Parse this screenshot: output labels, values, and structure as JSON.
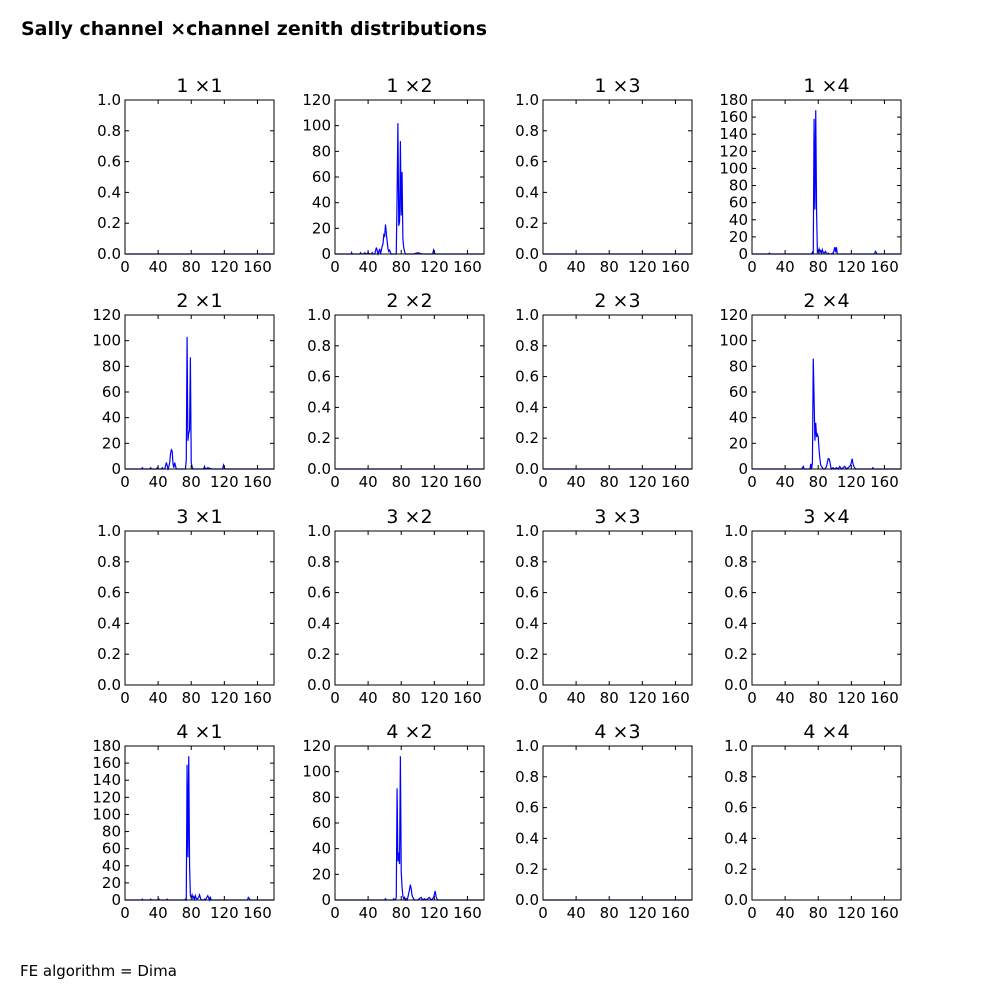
{
  "title": "Sally channel ×channel zenith distributions",
  "footer": "FE algorithm = Dima",
  "colors": {
    "line": "#0000ff",
    "axes": "#000000"
  },
  "chart_data": [
    {
      "type": "line",
      "title": "1 ×1",
      "xlim": [
        0,
        180
      ],
      "ylim": [
        0,
        1.0
      ],
      "xticks": [
        0,
        40,
        80,
        120,
        160
      ],
      "yticks": [
        "0.0",
        "0.2",
        "0.4",
        "0.6",
        "0.8",
        "1.0"
      ],
      "series": [
        {
          "x": [
            0,
            180
          ],
          "y": [
            0,
            0
          ]
        }
      ]
    },
    {
      "type": "line",
      "title": "1 ×2",
      "xlim": [
        0,
        180
      ],
      "ylim": [
        0,
        120
      ],
      "xticks": [
        0,
        40,
        80,
        120,
        160
      ],
      "yticks": [
        "0",
        "20",
        "40",
        "60",
        "80",
        "100",
        "120"
      ],
      "series": [
        {
          "x": [
            0,
            20,
            20,
            21,
            22,
            30,
            31,
            32,
            35,
            36,
            37,
            38,
            40,
            42,
            44,
            45,
            46,
            48,
            50,
            52,
            53,
            54,
            55,
            56,
            57,
            58,
            59,
            60,
            61,
            62,
            63,
            64,
            65,
            66,
            67,
            68,
            70,
            72,
            74,
            75,
            76,
            77,
            78,
            79,
            80,
            81,
            82,
            83,
            84,
            85,
            86,
            88,
            90,
            92,
            95,
            100,
            105,
            110,
            118,
            119,
            120,
            121,
            130,
            180
          ],
          "y": [
            0,
            0,
            1,
            0,
            0,
            0,
            1,
            0,
            0,
            1,
            0,
            0,
            1,
            0,
            0,
            1,
            0,
            0,
            5,
            0,
            2,
            4,
            0,
            3,
            6,
            8,
            15,
            14,
            23,
            16,
            10,
            4,
            2,
            3,
            1,
            0,
            0,
            0,
            0,
            45,
            102,
            22,
            25,
            88,
            30,
            64,
            12,
            5,
            2,
            0,
            0,
            0,
            0,
            0,
            0,
            1,
            0,
            0,
            0,
            3,
            1,
            0,
            0,
            0
          ]
        }
      ]
    },
    {
      "type": "line",
      "title": "1 ×3",
      "xlim": [
        0,
        180
      ],
      "ylim": [
        0,
        1.0
      ],
      "xticks": [
        0,
        40,
        80,
        120,
        160
      ],
      "yticks": [
        "0.0",
        "0.2",
        "0.4",
        "0.6",
        "0.8",
        "1.0"
      ],
      "series": [
        {
          "x": [
            0,
            180
          ],
          "y": [
            0,
            0
          ]
        }
      ]
    },
    {
      "type": "line",
      "title": "1 ×4",
      "xlim": [
        0,
        180
      ],
      "ylim": [
        0,
        180
      ],
      "xticks": [
        0,
        40,
        80,
        120,
        160
      ],
      "yticks": [
        "0",
        "20",
        "40",
        "60",
        "80",
        "100",
        "120",
        "140",
        "160",
        "180"
      ],
      "series": [
        {
          "x": [
            0,
            20,
            21,
            22,
            50,
            60,
            70,
            72,
            73,
            74,
            75,
            76,
            77,
            78,
            79,
            80,
            81,
            82,
            83,
            84,
            85,
            86,
            87,
            88,
            89,
            90,
            91,
            92,
            93,
            94,
            95,
            96,
            97,
            98,
            100,
            101,
            102,
            103,
            104,
            110,
            120,
            148,
            149,
            150,
            151,
            180
          ],
          "y": [
            0,
            0,
            1,
            0,
            0,
            0,
            0,
            0,
            2,
            0,
            158,
            52,
            168,
            50,
            2,
            3,
            6,
            2,
            4,
            1,
            5,
            2,
            1,
            2,
            3,
            0,
            0,
            1,
            0,
            0,
            0,
            0,
            1,
            0,
            8,
            2,
            8,
            0,
            0,
            0,
            0,
            0,
            3,
            2,
            0,
            0
          ]
        }
      ]
    },
    {
      "type": "line",
      "title": "2 ×1",
      "xlim": [
        0,
        180
      ],
      "ylim": [
        0,
        120
      ],
      "xticks": [
        0,
        40,
        80,
        120,
        160
      ],
      "yticks": [
        "0",
        "20",
        "40",
        "60",
        "80",
        "100",
        "120"
      ],
      "series": [
        {
          "x": [
            0,
            20,
            21,
            22,
            30,
            31,
            32,
            38,
            39,
            40,
            44,
            45,
            46,
            48,
            50,
            52,
            53,
            54,
            55,
            56,
            57,
            58,
            59,
            60,
            62,
            64,
            66,
            68,
            70,
            72,
            73,
            74,
            75,
            76,
            77,
            78,
            79,
            80,
            81,
            82,
            84,
            86,
            90,
            95,
            96,
            97,
            100,
            105,
            110,
            118,
            119,
            120,
            121,
            130,
            180
          ],
          "y": [
            0,
            0,
            1,
            0,
            0,
            1,
            0,
            0,
            1,
            0,
            0,
            1,
            0,
            0,
            5,
            0,
            2,
            5,
            12,
            15,
            14,
            4,
            1,
            5,
            0,
            0,
            0,
            0,
            0,
            0,
            0,
            7,
            103,
            22,
            28,
            30,
            87,
            5,
            2,
            0,
            0,
            0,
            0,
            0,
            2,
            0,
            1,
            0,
            0,
            0,
            3,
            1,
            0,
            0,
            0
          ]
        }
      ]
    },
    {
      "type": "line",
      "title": "2 ×2",
      "xlim": [
        0,
        180
      ],
      "ylim": [
        0,
        1.0
      ],
      "xticks": [
        0,
        40,
        80,
        120,
        160
      ],
      "yticks": [
        "0.0",
        "0.2",
        "0.4",
        "0.6",
        "0.8",
        "1.0"
      ],
      "series": [
        {
          "x": [
            0,
            180
          ],
          "y": [
            0,
            0
          ]
        }
      ]
    },
    {
      "type": "line",
      "title": "2 ×3",
      "xlim": [
        0,
        180
      ],
      "ylim": [
        0,
        1.0
      ],
      "xticks": [
        0,
        40,
        80,
        120,
        160
      ],
      "yticks": [
        "0.0",
        "0.2",
        "0.4",
        "0.6",
        "0.8",
        "1.0"
      ],
      "series": [
        {
          "x": [
            0,
            180
          ],
          "y": [
            0,
            0
          ]
        }
      ]
    },
    {
      "type": "line",
      "title": "2 ×4",
      "xlim": [
        0,
        180
      ],
      "ylim": [
        0,
        120
      ],
      "xticks": [
        0,
        40,
        80,
        120,
        160
      ],
      "yticks": [
        "0",
        "20",
        "40",
        "60",
        "80",
        "100",
        "120"
      ],
      "series": [
        {
          "x": [
            0,
            60,
            62,
            63,
            64,
            70,
            71,
            72,
            73,
            74,
            75,
            76,
            77,
            78,
            79,
            80,
            81,
            82,
            83,
            84,
            85,
            86,
            88,
            90,
            91,
            92,
            93,
            94,
            95,
            96,
            98,
            100,
            102,
            104,
            106,
            108,
            110,
            112,
            114,
            116,
            118,
            119,
            120,
            121,
            122,
            123,
            124,
            125,
            126,
            130,
            140,
            145,
            146,
            147,
            180
          ],
          "y": [
            0,
            0,
            2,
            0,
            0,
            0,
            4,
            0,
            5,
            86,
            55,
            22,
            36,
            25,
            27,
            25,
            15,
            8,
            3,
            2,
            1,
            0,
            0,
            2,
            5,
            8,
            8,
            6,
            2,
            0,
            1,
            0,
            1,
            0,
            2,
            0,
            1,
            2,
            0,
            1,
            2,
            3,
            5,
            8,
            4,
            2,
            1,
            0,
            0,
            0,
            0,
            0,
            1,
            0,
            0
          ]
        }
      ]
    },
    {
      "type": "line",
      "title": "3 ×1",
      "xlim": [
        0,
        180
      ],
      "ylim": [
        0,
        1.0
      ],
      "xticks": [
        0,
        40,
        80,
        120,
        160
      ],
      "yticks": [
        "0.0",
        "0.2",
        "0.4",
        "0.6",
        "0.8",
        "1.0"
      ],
      "series": []
    },
    {
      "type": "line",
      "title": "3 ×2",
      "xlim": [
        0,
        180
      ],
      "ylim": [
        0,
        1.0
      ],
      "xticks": [
        0,
        40,
        80,
        120,
        160
      ],
      "yticks": [
        "0.0",
        "0.2",
        "0.4",
        "0.6",
        "0.8",
        "1.0"
      ],
      "series": []
    },
    {
      "type": "line",
      "title": "3 ×3",
      "xlim": [
        0,
        180
      ],
      "ylim": [
        0,
        1.0
      ],
      "xticks": [
        0,
        40,
        80,
        120,
        160
      ],
      "yticks": [
        "0.0",
        "0.2",
        "0.4",
        "0.6",
        "0.8",
        "1.0"
      ],
      "series": []
    },
    {
      "type": "line",
      "title": "3 ×4",
      "xlim": [
        0,
        180
      ],
      "ylim": [
        0,
        1.0
      ],
      "xticks": [
        0,
        40,
        80,
        120,
        160
      ],
      "yticks": [
        "0.0",
        "0.2",
        "0.4",
        "0.6",
        "0.8",
        "1.0"
      ],
      "series": []
    },
    {
      "type": "line",
      "title": "4 ×1",
      "xlim": [
        0,
        180
      ],
      "ylim": [
        0,
        180
      ],
      "xticks": [
        0,
        40,
        80,
        120,
        160
      ],
      "yticks": [
        "0",
        "20",
        "40",
        "60",
        "80",
        "100",
        "120",
        "140",
        "160",
        "180"
      ],
      "series": [
        {
          "x": [
            0,
            20,
            21,
            22,
            30,
            31,
            32,
            40,
            41,
            42,
            50,
            51,
            52,
            60,
            70,
            72,
            73,
            74,
            75,
            76,
            77,
            78,
            79,
            80,
            81,
            82,
            83,
            84,
            85,
            86,
            87,
            88,
            89,
            90,
            91,
            92,
            95,
            96,
            97,
            100,
            102,
            103,
            104,
            110,
            120,
            148,
            149,
            150,
            151,
            180
          ],
          "y": [
            0,
            0,
            1,
            0,
            0,
            1,
            0,
            0,
            1,
            0,
            0,
            1,
            0,
            0,
            0,
            0,
            1,
            0,
            158,
            50,
            168,
            40,
            5,
            3,
            6,
            2,
            4,
            1,
            5,
            2,
            1,
            2,
            3,
            6,
            3,
            0,
            0,
            1,
            0,
            5,
            0,
            4,
            0,
            0,
            0,
            0,
            3,
            2,
            0,
            0
          ]
        }
      ]
    },
    {
      "type": "line",
      "title": "4 ×2",
      "xlim": [
        0,
        180
      ],
      "ylim": [
        0,
        120
      ],
      "xticks": [
        0,
        40,
        80,
        120,
        160
      ],
      "yticks": [
        "0",
        "20",
        "40",
        "60",
        "80",
        "100",
        "120"
      ],
      "series": [
        {
          "x": [
            0,
            60,
            61,
            62,
            70,
            71,
            72,
            73,
            74,
            75,
            76,
            77,
            78,
            79,
            80,
            81,
            82,
            83,
            84,
            85,
            86,
            87,
            88,
            89,
            90,
            91,
            92,
            93,
            94,
            95,
            96,
            98,
            100,
            104,
            106,
            108,
            110,
            112,
            114,
            116,
            118,
            119,
            120,
            121,
            122,
            123,
            124,
            125,
            126,
            130,
            180
          ],
          "y": [
            0,
            0,
            1,
            0,
            0,
            1,
            0,
            0,
            2,
            87,
            30,
            37,
            28,
            112,
            22,
            10,
            3,
            1,
            2,
            0,
            1,
            0,
            2,
            5,
            8,
            12,
            9,
            4,
            2,
            1,
            0,
            0,
            0,
            2,
            0,
            1,
            0,
            1,
            2,
            0,
            1,
            2,
            4,
            7,
            3,
            1,
            0,
            0,
            0,
            0,
            0
          ]
        }
      ]
    },
    {
      "type": "line",
      "title": "4 ×3",
      "xlim": [
        0,
        180
      ],
      "ylim": [
        0,
        1.0
      ],
      "xticks": [
        0,
        40,
        80,
        120,
        160
      ],
      "yticks": [
        "0.0",
        "0.2",
        "0.4",
        "0.6",
        "0.8",
        "1.0"
      ],
      "series": [
        {
          "x": [
            0,
            180
          ],
          "y": [
            0,
            0
          ]
        }
      ]
    },
    {
      "type": "line",
      "title": "4 ×4",
      "xlim": [
        0,
        180
      ],
      "ylim": [
        0,
        1.0
      ],
      "xticks": [
        0,
        40,
        80,
        120,
        160
      ],
      "yticks": [
        "0.0",
        "0.2",
        "0.4",
        "0.6",
        "0.8",
        "1.0"
      ],
      "series": []
    }
  ]
}
